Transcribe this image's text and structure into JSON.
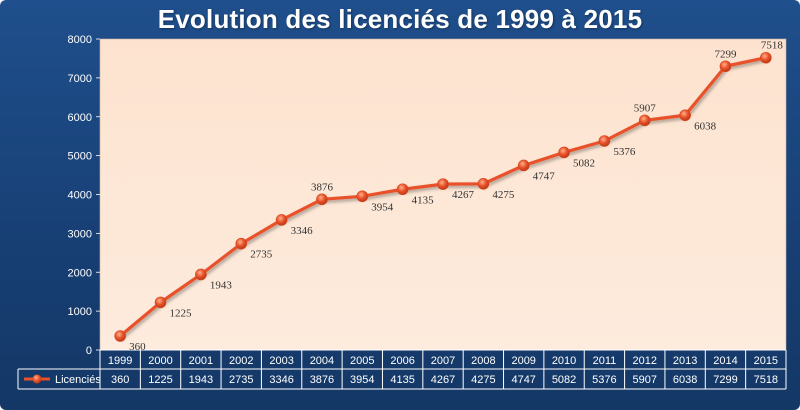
{
  "colors": {
    "frame": "#1f4f8c",
    "plot_bg": "#fde7d6",
    "line": "#e8512a",
    "grid": "#e7c7b0",
    "label": "#333333",
    "white": "#ffffff"
  },
  "chart_data": {
    "type": "line",
    "title": "Evolution des licenciés de 1999 à 2015",
    "categories": [
      "1999",
      "2000",
      "2001",
      "2002",
      "2003",
      "2004",
      "2005",
      "2006",
      "2007",
      "2008",
      "2009",
      "2010",
      "2011",
      "2012",
      "2013",
      "2014",
      "2015"
    ],
    "series": [
      {
        "name": "Licenciés",
        "values": [
          360,
          1225,
          1943,
          2735,
          3346,
          3876,
          3954,
          4135,
          4267,
          4275,
          4747,
          5082,
          5376,
          5907,
          6038,
          7299,
          7518
        ]
      }
    ],
    "ylim": [
      0,
      8000
    ],
    "yticks": [
      0,
      1000,
      2000,
      3000,
      4000,
      5000,
      6000,
      7000,
      8000
    ],
    "grid": false,
    "legend": "data-table",
    "data_table": true
  }
}
